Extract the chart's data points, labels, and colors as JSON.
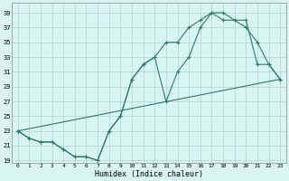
{
  "xlabel": "Humidex (Indice chaleur)",
  "bg_color": "#d8f5f0",
  "line_color": "#2d7a6e",
  "grid_color": "#a8d8d0",
  "ylim": [
    19,
    40
  ],
  "xlim": [
    -0.5,
    23.5
  ],
  "yticks": [
    19,
    21,
    23,
    25,
    27,
    29,
    31,
    33,
    35,
    37,
    39
  ],
  "xticks": [
    0,
    1,
    2,
    3,
    4,
    5,
    6,
    7,
    8,
    9,
    10,
    11,
    12,
    13,
    14,
    15,
    16,
    17,
    18,
    19,
    20,
    21,
    22,
    23
  ],
  "line1_x": [
    0,
    1,
    2,
    3,
    4,
    5,
    6,
    7,
    8,
    9,
    10,
    11,
    12,
    13,
    14,
    15,
    16,
    17,
    18,
    19,
    20,
    21,
    22,
    23
  ],
  "line1_y": [
    23,
    22,
    21.5,
    21.5,
    20.5,
    19.5,
    19.5,
    19,
    23,
    25,
    30,
    32,
    33,
    35,
    35,
    37,
    38,
    39,
    39,
    38,
    37,
    35,
    32,
    30
  ],
  "line2_x": [
    0,
    1,
    2,
    3,
    4,
    5,
    6,
    7,
    8,
    9,
    10,
    11,
    12,
    13,
    14,
    15,
    16,
    17,
    18,
    19,
    20,
    21,
    22,
    23
  ],
  "line2_y": [
    23,
    22,
    21.5,
    21.5,
    20.5,
    19.5,
    19.5,
    19,
    23,
    25,
    30,
    32,
    33,
    27,
    31,
    33,
    37,
    39,
    38,
    38,
    38,
    32,
    32,
    30
  ],
  "line3_x": [
    0,
    23
  ],
  "line3_y": [
    23,
    30
  ]
}
